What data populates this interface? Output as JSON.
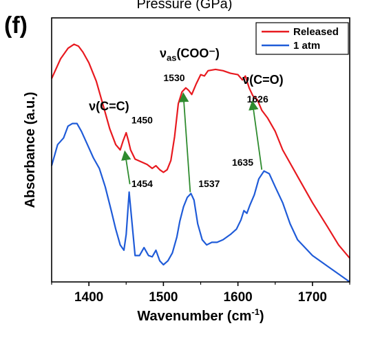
{
  "chart_data": {
    "type": "line",
    "panel_label": "(f)",
    "top_title": "Pressure (GPa)",
    "xlabel": "Wavenumber (cm",
    "xlabel_sup": "-1",
    "xlabel_tail": ")",
    "ylabel": "Absorbance (a.u.)",
    "xlim": [
      1350,
      1750
    ],
    "ylim": [
      0,
      1
    ],
    "xticks": [
      1400,
      1500,
      1600,
      1700
    ],
    "y_tick_labels": false,
    "grid": false,
    "legend_position": "top-right",
    "series": [
      {
        "name": "Released",
        "color": "#e8191f",
        "x": [
          1350,
          1362,
          1372,
          1380,
          1386,
          1392,
          1400,
          1410,
          1420,
          1428,
          1436,
          1442,
          1446,
          1450,
          1453,
          1456,
          1462,
          1470,
          1478,
          1485,
          1490,
          1495,
          1500,
          1505,
          1510,
          1515,
          1520,
          1525,
          1530,
          1534,
          1538,
          1544,
          1550,
          1555,
          1560,
          1570,
          1580,
          1590,
          1600,
          1606,
          1610,
          1615,
          1620,
          1626,
          1632,
          1640,
          1650,
          1660,
          1680,
          1700,
          1720,
          1735,
          1750
        ],
        "y": [
          0.77,
          0.845,
          0.885,
          0.9,
          0.893,
          0.87,
          0.83,
          0.76,
          0.66,
          0.58,
          0.52,
          0.5,
          0.535,
          0.565,
          0.535,
          0.5,
          0.465,
          0.455,
          0.445,
          0.43,
          0.44,
          0.425,
          0.415,
          0.425,
          0.46,
          0.55,
          0.675,
          0.72,
          0.735,
          0.725,
          0.71,
          0.75,
          0.785,
          0.78,
          0.8,
          0.805,
          0.8,
          0.79,
          0.785,
          0.765,
          0.78,
          0.735,
          0.705,
          0.69,
          0.65,
          0.62,
          0.57,
          0.5,
          0.4,
          0.3,
          0.21,
          0.14,
          0.09
        ]
      },
      {
        "name": "1 atm",
        "color": "#1f5bd8",
        "x": [
          1350,
          1358,
          1366,
          1372,
          1378,
          1384,
          1390,
          1398,
          1406,
          1414,
          1422,
          1430,
          1436,
          1442,
          1447,
          1450,
          1454,
          1458,
          1462,
          1468,
          1474,
          1480,
          1485,
          1490,
          1495,
          1500,
          1506,
          1512,
          1518,
          1522,
          1527,
          1532,
          1537,
          1541,
          1546,
          1552,
          1558,
          1565,
          1572,
          1580,
          1590,
          1598,
          1604,
          1608,
          1612,
          1616,
          1622,
          1628,
          1635,
          1642,
          1650,
          1660,
          1670,
          1680,
          1700,
          1720,
          1735,
          1750
        ],
        "y": [
          0.44,
          0.52,
          0.545,
          0.59,
          0.6,
          0.6,
          0.57,
          0.52,
          0.47,
          0.43,
          0.36,
          0.27,
          0.2,
          0.14,
          0.12,
          0.18,
          0.34,
          0.22,
          0.1,
          0.1,
          0.13,
          0.1,
          0.095,
          0.12,
          0.08,
          0.065,
          0.08,
          0.11,
          0.17,
          0.23,
          0.285,
          0.32,
          0.335,
          0.31,
          0.22,
          0.16,
          0.14,
          0.15,
          0.15,
          0.16,
          0.18,
          0.2,
          0.235,
          0.27,
          0.26,
          0.29,
          0.33,
          0.39,
          0.42,
          0.41,
          0.36,
          0.3,
          0.22,
          0.16,
          0.1,
          0.06,
          0.03,
          0.0
        ]
      }
    ],
    "annotations": [
      {
        "text": "1450",
        "x": 1457,
        "y": 0.6
      },
      {
        "text": "1454",
        "x": 1457,
        "y": 0.36
      },
      {
        "text": "1530",
        "x": 1500,
        "y": 0.76
      },
      {
        "text": "1537",
        "x": 1547,
        "y": 0.36
      },
      {
        "text": "1626",
        "x": 1612,
        "y": 0.68
      },
      {
        "text": "1635",
        "x": 1592,
        "y": 0.44
      }
    ],
    "band_labels": [
      {
        "main": "ν(C=C)",
        "sub": "",
        "tail": "",
        "x": 1400,
        "y": 0.65
      },
      {
        "main": "ν",
        "sub": "as",
        "tail": "(COO⁻)",
        "x": 1495,
        "y": 0.85
      },
      {
        "main": "ν(C=O)",
        "sub": "",
        "tail": "",
        "x": 1606,
        "y": 0.75
      }
    ],
    "arrows": [
      {
        "from": [
          1455,
          0.37
        ],
        "to": [
          1449,
          0.48
        ]
      },
      {
        "from": [
          1536,
          0.34
        ],
        "to": [
          1527,
          0.7
        ]
      },
      {
        "from": [
          1632,
          0.425
        ],
        "to": [
          1620,
          0.67
        ]
      }
    ],
    "arrow_color": "#2e8b2e"
  }
}
